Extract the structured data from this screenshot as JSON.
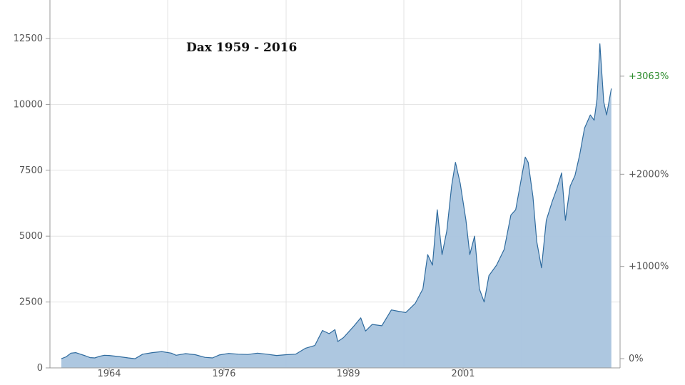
{
  "chart_data": {
    "type": "area",
    "title": "Dax 1959 - 2016",
    "xlabel": "",
    "ylabel": "",
    "xlim": [
      1958.0,
      2016.5
    ],
    "ylim": [
      0,
      13500
    ],
    "x_ticks": [
      "1964",
      "1976",
      "1989",
      "2001"
    ],
    "y_ticks": [
      "0",
      "2500",
      "5000",
      "7500",
      "10000",
      "12500"
    ],
    "right_axis": {
      "ticks": [
        "0%",
        "+1000%",
        "+2000%"
      ],
      "highlight": "+3063%",
      "highlight_color": "#2a8a2a"
    },
    "grid": true,
    "fill_color": "#a9c4de",
    "line_color": "#2f6b9e",
    "series": [
      {
        "x": [
          1959.0,
          1959.5,
          1960.0,
          1960.5,
          1961.0,
          1961.5,
          1962.0,
          1962.5,
          1963.0,
          1963.5,
          1964.0,
          1965.0,
          1966.0,
          1966.7,
          1967.5,
          1968.5,
          1969.5,
          1970.5,
          1971.0,
          1972.0,
          1973.0,
          1974.0,
          1974.8,
          1975.5,
          1976.5,
          1977.5,
          1978.5,
          1979.5,
          1980.5,
          1981.5,
          1982.5,
          1983.5,
          1984.5,
          1985.5,
          1986.3,
          1987.0,
          1987.6,
          1987.9,
          1988.5,
          1989.5,
          1990.3,
          1990.8,
          1991.5,
          1992.5,
          1993.5,
          1994.2,
          1995.0,
          1996.0,
          1996.8,
          1997.3,
          1997.8,
          1998.3,
          1998.8,
          1999.3,
          1999.8,
          2000.2,
          2000.7,
          2001.3,
          2001.7,
          2002.2,
          2002.7,
          2003.2,
          2003.7,
          2004.5,
          2005.3,
          2006.0,
          2006.5,
          2007.0,
          2007.5,
          2007.8,
          2008.3,
          2008.7,
          2009.2,
          2009.7,
          2010.3,
          2010.8,
          2011.3,
          2011.7,
          2012.2,
          2012.7,
          2013.2,
          2013.7,
          2014.3,
          2014.7,
          2015.0,
          2015.3,
          2015.7,
          2016.0,
          2016.5
        ],
        "values": [
          350,
          420,
          560,
          580,
          520,
          460,
          390,
          380,
          440,
          480,
          470,
          430,
          380,
          350,
          520,
          580,
          620,
          560,
          480,
          540,
          500,
          400,
          380,
          490,
          550,
          520,
          510,
          560,
          520,
          470,
          500,
          520,
          740,
          850,
          1420,
          1300,
          1450,
          1000,
          1150,
          1550,
          1900,
          1400,
          1650,
          1600,
          2200,
          2150,
          2100,
          2450,
          3000,
          4300,
          3900,
          6000,
          4300,
          5200,
          6900,
          7800,
          7000,
          5600,
          4300,
          5000,
          3000,
          2500,
          3500,
          3900,
          4500,
          5800,
          6000,
          7000,
          8000,
          7800,
          6500,
          4800,
          3800,
          5600,
          6300,
          6800,
          7400,
          5600,
          6900,
          7300,
          8100,
          9100,
          9600,
          9400,
          10200,
          12300,
          10100,
          9600,
          10600
        ]
      }
    ]
  }
}
